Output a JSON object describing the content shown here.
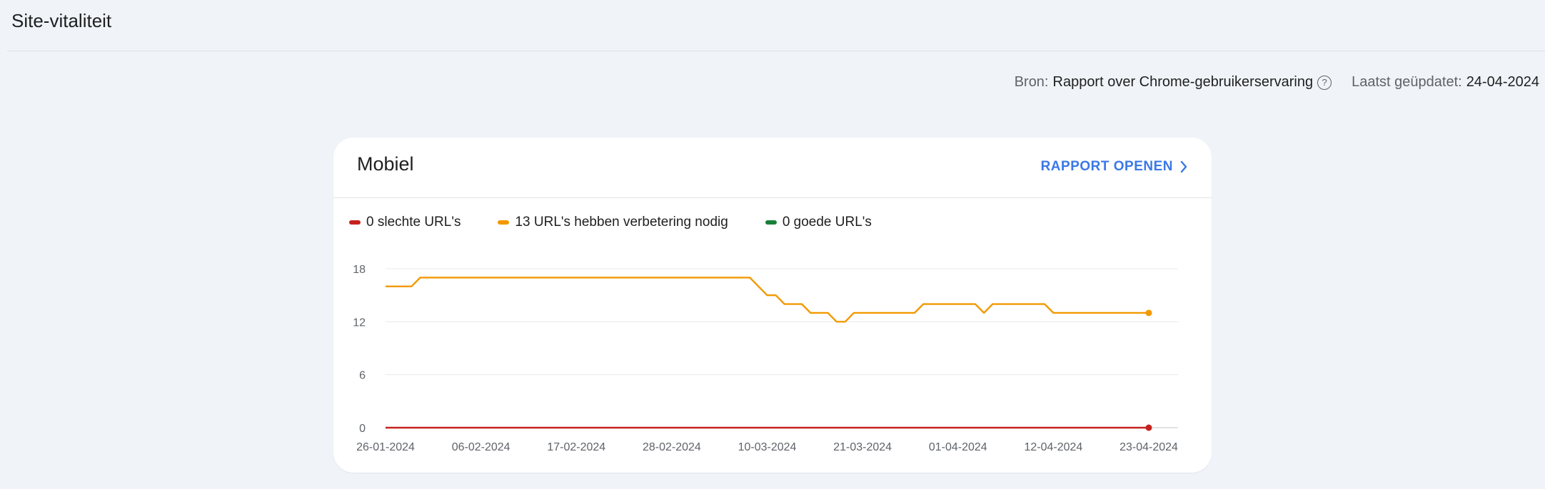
{
  "header": {
    "title": "Site-vitaliteit"
  },
  "source": {
    "label": "Bron:",
    "value": "Rapport over Chrome-gebruikerservaring",
    "help_icon": "help-circle-icon",
    "updated_label": "Laatst geüpdatet:",
    "updated_value": "24-04-2024"
  },
  "card": {
    "title": "Mobiel",
    "open_report_label": "RAPPORT OPENEN",
    "open_report_icon": "chevron-right-icon",
    "accent_color": "#3b78e7"
  },
  "chart_data": {
    "type": "line",
    "x": [
      "26-01-2024",
      "06-02-2024",
      "17-02-2024",
      "28-02-2024",
      "10-03-2024",
      "21-03-2024",
      "01-04-2024",
      "12-04-2024",
      "23-04-2024"
    ],
    "ylim": [
      0,
      18
    ],
    "yticks": [
      18,
      12,
      6,
      0
    ],
    "grid": true,
    "legend_placement": "top-left",
    "series": [
      {
        "name": "0 slechte URL's",
        "color": "#c5221f",
        "points": [
          [
            "2024-01-26",
            0
          ],
          [
            "2024-04-23",
            0
          ]
        ]
      },
      {
        "name": "13 URL's hebben verbetering nodig",
        "color": "#f29900",
        "points": [
          [
            "2024-01-26",
            16
          ],
          [
            "2024-01-29",
            16
          ],
          [
            "2024-01-30",
            17
          ],
          [
            "2024-03-08",
            17
          ],
          [
            "2024-03-10",
            15
          ],
          [
            "2024-03-11",
            15
          ],
          [
            "2024-03-12",
            14
          ],
          [
            "2024-03-14",
            14
          ],
          [
            "2024-03-15",
            13
          ],
          [
            "2024-03-17",
            13
          ],
          [
            "2024-03-18",
            12
          ],
          [
            "2024-03-19",
            12
          ],
          [
            "2024-03-20",
            13
          ],
          [
            "2024-03-27",
            13
          ],
          [
            "2024-03-28",
            14
          ],
          [
            "2024-04-03",
            14
          ],
          [
            "2024-04-04",
            13
          ],
          [
            "2024-04-05",
            14
          ],
          [
            "2024-04-11",
            14
          ],
          [
            "2024-04-12",
            13
          ],
          [
            "2024-04-23",
            13
          ]
        ]
      },
      {
        "name": "0 goede URL's",
        "color": "#188038",
        "points": []
      }
    ]
  }
}
